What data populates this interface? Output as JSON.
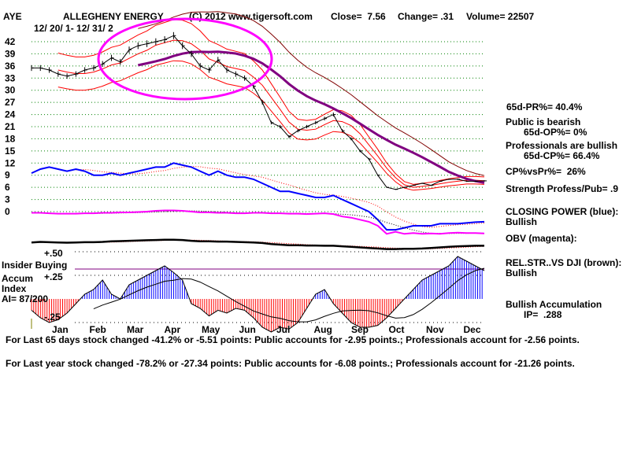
{
  "header": {
    "ticker": "AYE",
    "name": "ALLEGHENY ENERGY",
    "copyright": "(C) 2012 www.tigersoft.com",
    "close": "Close=  7.56",
    "change": "Change= .31",
    "volume": "Volume= 22507",
    "date_range": "12/ 20/ 1- 12/ 31/ 2"
  },
  "right_panel": [
    "65d-PR%= 40.4%",
    "Public is bearish",
    "65d-OP%= 0%",
    "Professionals are bullish",
    "65d-CP%= 66.4%",
    "CP%vsPr%=  26%",
    "Strength Profess/Pub= .9",
    "CLOSING POWER (blue):",
    "Bullish",
    "OBV (magenta):",
    "REL.STR..VS DJI (brown):",
    "Bullish",
    "Bullish Accumulation",
    "IP=  .288"
  ],
  "left_labels": {
    "insider": "Insider Buying",
    "accum": "Accum",
    "index": "Index",
    "ai": "AI= 87/200",
    "p50": "+.50",
    "p25": "+.25",
    "m25": "-.25"
  },
  "footer": [
    "For Last 65 days stock changed -41.2% or -5.51 points:  Public accounts for -2.95 points.;  Professionals account for -2.56 points.",
    "For Last year stock changed -78.2% or -27.34 points:  Public accounts for -6.08 points.;  Professionals account for -21.26 points."
  ],
  "chart_data": {
    "type": "line",
    "title": "ALLEGHENY ENERGY",
    "y_ticks": [
      42,
      39,
      36,
      33,
      30,
      27,
      24,
      21,
      18,
      15,
      12,
      9,
      6,
      3,
      0
    ],
    "ylim": [
      0,
      42
    ],
    "months": [
      "Jan",
      "Feb",
      "Mar",
      "Apr",
      "May",
      "Jun",
      "Jul",
      "Aug",
      "Sep",
      "Oct",
      "Nov",
      "Dec"
    ],
    "price": [
      35.5,
      35.5,
      35,
      34,
      33.5,
      34,
      35,
      35.5,
      36.5,
      38,
      37,
      40,
      41,
      41.5,
      42,
      42.5,
      43.5,
      41,
      39,
      36,
      35,
      37.5,
      35,
      34,
      33,
      31,
      27,
      22,
      21,
      18.5,
      20,
      21,
      22,
      23,
      24,
      20,
      18,
      15,
      13,
      9,
      6,
      5.5,
      6,
      6.5,
      7,
      6.5,
      7.5,
      8,
      8,
      7.5,
      7.5,
      7.6
    ],
    "closing_power": [
      9.5,
      10.5,
      11,
      10.5,
      10,
      10.5,
      10,
      9,
      9,
      9.5,
      9,
      9.5,
      10,
      10.5,
      11,
      11,
      12,
      11.5,
      11,
      10,
      9,
      10,
      9,
      8.5,
      8.5,
      8,
      7,
      6,
      5,
      5,
      4.5,
      4,
      3.5,
      3.5,
      4,
      3,
      2,
      1,
      0,
      -2,
      -4.5,
      -4.5,
      -4,
      -3.5,
      -3.5,
      -3.5,
      -3,
      -3,
      -3,
      -2.8,
      -2.6,
      -2.5
    ],
    "obv": [
      -0.3,
      -0.3,
      -0.4,
      -0.5,
      -0.5,
      -0.5,
      -0.4,
      -0.4,
      -0.3,
      -0.3,
      -0.2,
      -0.2,
      -0.1,
      0,
      0.2,
      0.3,
      0.3,
      0.2,
      0,
      -0.2,
      -0.2,
      -0.3,
      -0.3,
      -0.4,
      -0.4,
      -0.3,
      -0.3,
      -0.4,
      -0.4,
      -0.5,
      -0.5,
      -0.6,
      -0.5,
      -0.4,
      -0.6,
      -1.2,
      -1.5,
      -2,
      -2.5,
      -3.5,
      -5.5,
      -5,
      -5.5,
      -5.3,
      -5.5,
      -5.4,
      -5.5,
      -5.3,
      -5.2,
      -5.3,
      -5.3,
      -5.4
    ],
    "rel_str": [
      0.7,
      0.75,
      0.72,
      0.7,
      0.68,
      0.7,
      0.72,
      0.72,
      0.75,
      0.8,
      0.82,
      0.85,
      0.88,
      0.9,
      0.92,
      0.95,
      0.95,
      0.92,
      0.85,
      0.8,
      0.8,
      0.78,
      0.78,
      0.75,
      0.72,
      0.7,
      0.65,
      0.55,
      0.5,
      0.45,
      0.45,
      0.42,
      0.42,
      0.4,
      0.4,
      0.35,
      0.3,
      0.25,
      0.2,
      0.15,
      0.1,
      0.1,
      0.12,
      0.12,
      0.15,
      0.2,
      0.25,
      0.3,
      0.35,
      0.38,
      0.4,
      0.4
    ],
    "accum": [
      -0.12,
      -0.2,
      -0.25,
      -0.22,
      -0.15,
      -0.05,
      0.05,
      0.1,
      0.2,
      0.05,
      0.0,
      0.15,
      0.2,
      0.25,
      0.3,
      0.35,
      0.28,
      0.2,
      -0.05,
      -0.1,
      -0.18,
      -0.12,
      -0.15,
      -0.1,
      -0.12,
      -0.2,
      -0.3,
      -0.35,
      -0.3,
      -0.32,
      -0.25,
      -0.1,
      0.05,
      0.1,
      -0.05,
      -0.15,
      -0.25,
      -0.3,
      -0.3,
      -0.28,
      -0.2,
      -0.1,
      0.0,
      0.1,
      0.2,
      0.25,
      0.3,
      0.35,
      0.45,
      0.4,
      0.35,
      0.3
    ],
    "accum_ticks": [
      "+.50",
      "+.25",
      "-.25"
    ],
    "colors": {
      "price": "#000000",
      "ma": "#ff0000",
      "ma65": "#800080",
      "band": "#800000",
      "cp": "#0000ff",
      "obv": "#ff00ff",
      "accum_pos": "#0000ff",
      "accum_neg": "#ff0000",
      "highlight": "#ff00ff"
    }
  }
}
